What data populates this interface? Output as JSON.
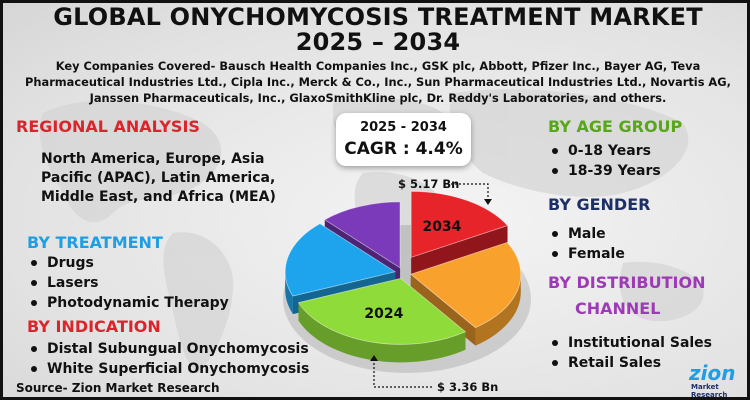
{
  "header": {
    "title_line1": "GLOBAL ONYCHOMYCOSIS TREATMENT MARKET",
    "title_line2": "2025 – 2034",
    "companies": "Key Companies Covered- Bausch Health Companies Inc., GSK plc, Abbott, Pfizer Inc., Bayer AG, Teva Pharmaceutical Industries Ltd., Cipla Inc., Merck & Co., Inc., Sun Pharmaceutical Industries Ltd., Novartis AG, Janssen Pharmaceuticals, Inc., GlaxoSmithKline plc, Dr. Reddy's Laboratories, and others."
  },
  "regional": {
    "heading": "REGIONAL ANALYSIS",
    "text": "North America, Europe, Asia Pacific (APAC), Latin America, Middle East, and Africa (MEA)"
  },
  "treatment": {
    "heading": "BY TREATMENT",
    "items": [
      "Drugs",
      "Lasers",
      "Photodynamic Therapy"
    ]
  },
  "indication": {
    "heading": "BY INDICATION",
    "items": [
      "Distal Subungual Onychomycosis",
      "White Superficial Onychomycosis"
    ]
  },
  "age": {
    "heading": "BY AGE GROUP",
    "items": [
      "0-18 Years",
      "18-39 Years"
    ]
  },
  "gender": {
    "heading": "BY GENDER",
    "items": [
      "Male",
      "Female"
    ]
  },
  "distribution": {
    "heading_line1": "BY DISTRIBUTION",
    "heading_line2": "CHANNEL",
    "items": [
      "Institutional Sales",
      "Retail Sales"
    ]
  },
  "cagr": {
    "period": "2025 - 2034",
    "value": "CAGR : 4.4%"
  },
  "source": "Source- Zion Market Research",
  "logo": {
    "main": "zion",
    "sub": "Market Research"
  },
  "colors": {
    "red_heading": "#d9262c",
    "blue_heading": "#1f9fe2",
    "green_heading": "#58a619",
    "navy_heading": "#1d2f67",
    "purple_heading": "#9d3ab5"
  },
  "chart_data": {
    "type": "pie",
    "title": "",
    "annotations": [
      {
        "label": "2034",
        "value_label": "$ 5.17 Bn"
      },
      {
        "label": "2024",
        "value_label": "$ 3.36 Bn"
      }
    ],
    "slices": [
      {
        "label": "2034",
        "value": 17,
        "color": "#e8242b"
      },
      {
        "label": "",
        "value": 23,
        "color": "#f9a12d"
      },
      {
        "label": "2024",
        "value": 29,
        "color": "#8fdb3a"
      },
      {
        "label": "",
        "value": 19,
        "color": "#1ea4ec"
      },
      {
        "label": "",
        "value": 12,
        "color": "#7b3ab9"
      }
    ]
  }
}
